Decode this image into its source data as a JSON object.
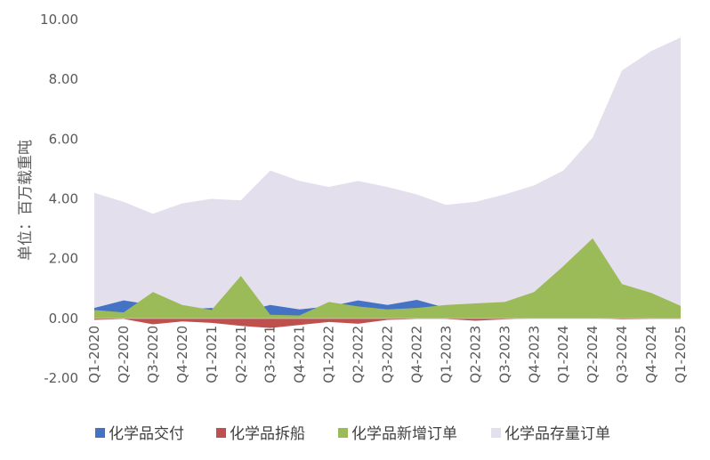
{
  "chart_data": {
    "type": "area",
    "title": "",
    "xlabel": "",
    "ylabel": "单位：百万载重吨",
    "ylim": [
      -2,
      10
    ],
    "yticks": [
      "10.00",
      "8.00",
      "6.00",
      "4.00",
      "2.00",
      "0.00",
      "-2.00"
    ],
    "grid": false,
    "legend_position": "bottom",
    "categories": [
      "Q1-2020",
      "Q2-2020",
      "Q3-2020",
      "Q4-2020",
      "Q1-2021",
      "Q2-2021",
      "Q3-2021",
      "Q4-2021",
      "Q1-2022",
      "Q2-2022",
      "Q3-2022",
      "Q4-2022",
      "Q1-2023",
      "Q2-2023",
      "Q3-2023",
      "Q4-2023",
      "Q1-2024",
      "Q2-2024",
      "Q3-2024",
      "Q4-2024",
      "Q1-2025"
    ],
    "series": [
      {
        "name": "化学品存量订单",
        "color": "#e4dfec",
        "values": [
          4.2,
          3.9,
          3.5,
          3.85,
          4.0,
          3.95,
          4.95,
          4.6,
          4.4,
          4.6,
          4.4,
          4.15,
          3.8,
          3.9,
          4.15,
          4.45,
          4.95,
          6.05,
          8.3,
          8.95,
          9.4
        ]
      },
      {
        "name": "化学品交付",
        "color": "#4472c4",
        "values": [
          0.35,
          0.6,
          0.45,
          0.3,
          0.35,
          0.2,
          0.45,
          0.3,
          0.4,
          0.6,
          0.45,
          0.62,
          0.35,
          0.15,
          0.1,
          0.1,
          0.05,
          0.05,
          0.05,
          0.05,
          0.05
        ]
      },
      {
        "name": "化学品新增订单",
        "color": "#9bbb59",
        "values": [
          0.28,
          0.2,
          0.88,
          0.45,
          0.28,
          1.42,
          0.12,
          0.1,
          0.55,
          0.4,
          0.3,
          0.35,
          0.45,
          0.5,
          0.55,
          0.88,
          1.75,
          2.68,
          1.15,
          0.85,
          0.42
        ]
      },
      {
        "name": "化学品拆船",
        "color": "#c0504d",
        "values": [
          -0.05,
          -0.02,
          -0.2,
          -0.1,
          -0.15,
          -0.25,
          -0.32,
          -0.22,
          -0.12,
          -0.18,
          -0.05,
          -0.02,
          -0.02,
          -0.08,
          -0.03,
          0,
          0,
          0,
          -0.03,
          -0.02,
          -0.02
        ]
      }
    ]
  }
}
